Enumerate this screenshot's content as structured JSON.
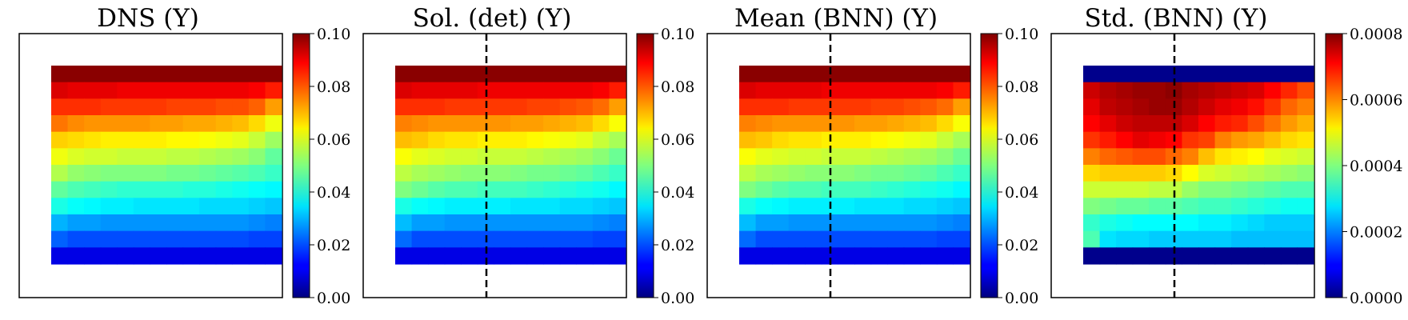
{
  "figure": {
    "panels": [
      {
        "id": "dns",
        "title": "DNS (Y)",
        "dashed_line": false
      },
      {
        "id": "sol_det",
        "title": "Sol. (det) (Y)",
        "dashed_line": true
      },
      {
        "id": "mean_bnn",
        "title": "Mean (BNN) (Y)",
        "dashed_line": true
      },
      {
        "id": "std_bnn",
        "title": "Std. (BNN) (Y)",
        "dashed_line": true
      }
    ]
  },
  "chart_data": [
    {
      "type": "heatmap",
      "title": "DNS (Y)",
      "colormap": "jet",
      "grid": false,
      "colorbar": {
        "ylim": [
          0.0,
          0.1
        ],
        "ticks": [
          "0.00",
          "0.02",
          "0.04",
          "0.06",
          "0.08",
          "0.10"
        ]
      },
      "values": [
        [
          0.099,
          0.099,
          0.099,
          0.099,
          0.099,
          0.099,
          0.099,
          0.099,
          0.099,
          0.099,
          0.099,
          0.099,
          0.099,
          0.099
        ],
        [
          0.091,
          0.09,
          0.09,
          0.09,
          0.089,
          0.089,
          0.089,
          0.089,
          0.089,
          0.089,
          0.089,
          0.089,
          0.088,
          0.085
        ],
        [
          0.083,
          0.083,
          0.083,
          0.082,
          0.082,
          0.082,
          0.082,
          0.081,
          0.081,
          0.081,
          0.08,
          0.08,
          0.078,
          0.072
        ],
        [
          0.076,
          0.074,
          0.073,
          0.073,
          0.073,
          0.073,
          0.072,
          0.072,
          0.071,
          0.071,
          0.07,
          0.069,
          0.066,
          0.061
        ],
        [
          0.067,
          0.066,
          0.065,
          0.064,
          0.064,
          0.064,
          0.064,
          0.063,
          0.063,
          0.062,
          0.061,
          0.06,
          0.057,
          0.053
        ],
        [
          0.061,
          0.059,
          0.058,
          0.058,
          0.057,
          0.057,
          0.057,
          0.056,
          0.056,
          0.055,
          0.054,
          0.053,
          0.051,
          0.047
        ],
        [
          0.055,
          0.052,
          0.051,
          0.05,
          0.05,
          0.05,
          0.05,
          0.049,
          0.049,
          0.048,
          0.047,
          0.046,
          0.045,
          0.043
        ],
        [
          0.047,
          0.045,
          0.044,
          0.043,
          0.042,
          0.042,
          0.042,
          0.042,
          0.041,
          0.041,
          0.04,
          0.039,
          0.038,
          0.037
        ],
        [
          0.04,
          0.038,
          0.037,
          0.036,
          0.036,
          0.035,
          0.035,
          0.035,
          0.035,
          0.034,
          0.034,
          0.034,
          0.033,
          0.032
        ],
        [
          0.03,
          0.028,
          0.028,
          0.027,
          0.027,
          0.027,
          0.027,
          0.027,
          0.027,
          0.027,
          0.027,
          0.027,
          0.026,
          0.025
        ],
        [
          0.022,
          0.02,
          0.02,
          0.02,
          0.02,
          0.02,
          0.02,
          0.02,
          0.02,
          0.02,
          0.02,
          0.02,
          0.019,
          0.019
        ],
        [
          0.01,
          0.01,
          0.01,
          0.01,
          0.01,
          0.01,
          0.01,
          0.01,
          0.01,
          0.01,
          0.01,
          0.01,
          0.01,
          0.01
        ]
      ]
    },
    {
      "type": "heatmap",
      "title": "Sol. (det) (Y)",
      "colormap": "jet",
      "grid": false,
      "colorbar": {
        "ylim": [
          0.0,
          0.1
        ],
        "ticks": [
          "0.00",
          "0.02",
          "0.04",
          "0.06",
          "0.08",
          "0.10"
        ]
      },
      "values": [
        [
          0.099,
          0.099,
          0.099,
          0.099,
          0.099,
          0.099,
          0.099,
          0.099,
          0.099,
          0.099,
          0.099,
          0.099,
          0.099,
          0.099
        ],
        [
          0.091,
          0.09,
          0.09,
          0.09,
          0.09,
          0.089,
          0.089,
          0.089,
          0.089,
          0.089,
          0.089,
          0.089,
          0.088,
          0.085
        ],
        [
          0.083,
          0.083,
          0.083,
          0.082,
          0.082,
          0.082,
          0.082,
          0.082,
          0.081,
          0.081,
          0.08,
          0.079,
          0.077,
          0.072
        ],
        [
          0.075,
          0.074,
          0.073,
          0.073,
          0.073,
          0.073,
          0.073,
          0.072,
          0.072,
          0.071,
          0.07,
          0.069,
          0.066,
          0.062
        ],
        [
          0.069,
          0.068,
          0.066,
          0.065,
          0.065,
          0.064,
          0.064,
          0.064,
          0.063,
          0.062,
          0.061,
          0.06,
          0.057,
          0.054
        ],
        [
          0.062,
          0.06,
          0.059,
          0.058,
          0.058,
          0.057,
          0.057,
          0.057,
          0.056,
          0.055,
          0.054,
          0.053,
          0.051,
          0.048
        ],
        [
          0.056,
          0.054,
          0.053,
          0.052,
          0.051,
          0.051,
          0.051,
          0.05,
          0.049,
          0.049,
          0.048,
          0.047,
          0.045,
          0.043
        ],
        [
          0.05,
          0.048,
          0.046,
          0.045,
          0.045,
          0.044,
          0.044,
          0.044,
          0.043,
          0.042,
          0.041,
          0.04,
          0.039,
          0.037
        ],
        [
          0.04,
          0.038,
          0.037,
          0.036,
          0.036,
          0.036,
          0.036,
          0.035,
          0.035,
          0.035,
          0.034,
          0.034,
          0.033,
          0.032
        ],
        [
          0.031,
          0.028,
          0.028,
          0.027,
          0.027,
          0.027,
          0.027,
          0.027,
          0.027,
          0.027,
          0.027,
          0.027,
          0.026,
          0.025
        ],
        [
          0.023,
          0.02,
          0.02,
          0.02,
          0.02,
          0.02,
          0.02,
          0.02,
          0.02,
          0.02,
          0.02,
          0.02,
          0.019,
          0.019
        ],
        [
          0.01,
          0.01,
          0.01,
          0.01,
          0.01,
          0.01,
          0.01,
          0.01,
          0.01,
          0.01,
          0.01,
          0.01,
          0.01,
          0.01
        ]
      ]
    },
    {
      "type": "heatmap",
      "title": "Mean (BNN) (Y)",
      "colormap": "jet",
      "grid": false,
      "colorbar": {
        "ylim": [
          0.0,
          0.1
        ],
        "ticks": [
          "0.00",
          "0.02",
          "0.04",
          "0.06",
          "0.08",
          "0.10"
        ]
      },
      "values": [
        [
          0.099,
          0.099,
          0.099,
          0.099,
          0.099,
          0.099,
          0.099,
          0.099,
          0.099,
          0.099,
          0.099,
          0.099,
          0.099,
          0.099
        ],
        [
          0.091,
          0.09,
          0.09,
          0.09,
          0.09,
          0.089,
          0.089,
          0.089,
          0.089,
          0.089,
          0.089,
          0.089,
          0.088,
          0.085
        ],
        [
          0.083,
          0.083,
          0.083,
          0.082,
          0.082,
          0.082,
          0.082,
          0.082,
          0.081,
          0.081,
          0.08,
          0.079,
          0.077,
          0.072
        ],
        [
          0.075,
          0.074,
          0.073,
          0.073,
          0.073,
          0.073,
          0.073,
          0.072,
          0.072,
          0.071,
          0.07,
          0.069,
          0.066,
          0.062
        ],
        [
          0.069,
          0.068,
          0.066,
          0.065,
          0.065,
          0.064,
          0.064,
          0.064,
          0.063,
          0.062,
          0.061,
          0.06,
          0.057,
          0.054
        ],
        [
          0.062,
          0.06,
          0.059,
          0.058,
          0.058,
          0.057,
          0.057,
          0.057,
          0.056,
          0.055,
          0.054,
          0.053,
          0.051,
          0.048
        ],
        [
          0.056,
          0.054,
          0.053,
          0.052,
          0.051,
          0.051,
          0.051,
          0.05,
          0.049,
          0.049,
          0.048,
          0.047,
          0.045,
          0.043
        ],
        [
          0.05,
          0.048,
          0.046,
          0.045,
          0.045,
          0.044,
          0.044,
          0.044,
          0.043,
          0.042,
          0.041,
          0.04,
          0.039,
          0.037
        ],
        [
          0.04,
          0.038,
          0.037,
          0.036,
          0.036,
          0.036,
          0.036,
          0.035,
          0.035,
          0.035,
          0.034,
          0.034,
          0.033,
          0.032
        ],
        [
          0.031,
          0.028,
          0.028,
          0.027,
          0.027,
          0.027,
          0.027,
          0.027,
          0.027,
          0.027,
          0.027,
          0.027,
          0.026,
          0.025
        ],
        [
          0.023,
          0.02,
          0.02,
          0.02,
          0.02,
          0.02,
          0.02,
          0.02,
          0.02,
          0.02,
          0.02,
          0.02,
          0.019,
          0.019
        ],
        [
          0.01,
          0.01,
          0.01,
          0.01,
          0.01,
          0.01,
          0.01,
          0.01,
          0.01,
          0.01,
          0.01,
          0.01,
          0.01,
          0.01
        ]
      ]
    },
    {
      "type": "heatmap",
      "title": "Std. (BNN) (Y)",
      "colormap": "jet",
      "grid": false,
      "colorbar": {
        "ylim": [
          0.0,
          0.0008
        ],
        "ticks": [
          "0.0000",
          "0.0002",
          "0.0004",
          "0.0006",
          "0.0008"
        ]
      },
      "values": [
        [
          1e-05,
          1e-05,
          1e-05,
          1e-05,
          1e-05,
          1e-05,
          1e-05,
          1e-05,
          1e-05,
          1e-05,
          1e-05,
          1e-05,
          1e-05,
          1e-05
        ],
        [
          0.00074,
          0.00076,
          0.00077,
          0.00078,
          0.00078,
          0.00079,
          0.00077,
          0.00076,
          0.00075,
          0.00074,
          0.00073,
          0.0007,
          0.00067,
          0.00064
        ],
        [
          0.00072,
          0.00075,
          0.00076,
          0.00077,
          0.00078,
          0.00078,
          0.00076,
          0.00074,
          0.00072,
          0.00071,
          0.00069,
          0.00066,
          0.00062,
          0.0006
        ],
        [
          0.0007,
          0.00072,
          0.00074,
          0.00075,
          0.00075,
          0.00075,
          0.00073,
          0.0007,
          0.00068,
          0.00067,
          0.00064,
          0.00061,
          0.00058,
          0.00056
        ],
        [
          0.00066,
          0.00068,
          0.0007,
          0.00072,
          0.00071,
          0.0007,
          0.00066,
          0.00065,
          0.0006,
          0.00058,
          0.00057,
          0.00055,
          0.00053,
          0.00052
        ],
        [
          0.0006,
          0.00062,
          0.00063,
          0.00064,
          0.00064,
          0.00062,
          0.0006,
          0.00055,
          0.00052,
          0.00051,
          0.0005,
          0.00048,
          0.00047,
          0.00046
        ],
        [
          0.00053,
          0.00054,
          0.00054,
          0.00054,
          0.00054,
          0.00053,
          0.0005,
          0.00047,
          0.00046,
          0.00045,
          0.00044,
          0.00043,
          0.00042,
          0.00041
        ],
        [
          0.00046,
          0.00046,
          0.00046,
          0.00046,
          0.00045,
          0.00045,
          0.00042,
          0.0004,
          0.0004,
          0.00039,
          0.00038,
          0.00037,
          0.00036,
          0.00036
        ],
        [
          0.0004,
          0.00039,
          0.00038,
          0.00038,
          0.00037,
          0.00037,
          0.00036,
          0.00035,
          0.00035,
          0.00034,
          0.00033,
          0.00032,
          0.00031,
          0.00031
        ],
        [
          0.00034,
          0.00032,
          0.00031,
          0.0003,
          0.0003,
          0.0003,
          0.0003,
          0.00029,
          0.00029,
          0.00028,
          0.00027,
          0.00026,
          0.00026,
          0.00026
        ],
        [
          0.00036,
          0.00028,
          0.00027,
          0.00027,
          0.00026,
          0.00026,
          0.00026,
          0.00026,
          0.00026,
          0.00025,
          0.00025,
          0.00025,
          0.00025,
          0.00025
        ],
        [
          1e-05,
          1e-05,
          1e-05,
          1e-05,
          1e-05,
          1e-05,
          1e-05,
          1e-05,
          1e-05,
          1e-05,
          1e-05,
          1e-05,
          1e-05,
          1e-05
        ]
      ]
    }
  ]
}
